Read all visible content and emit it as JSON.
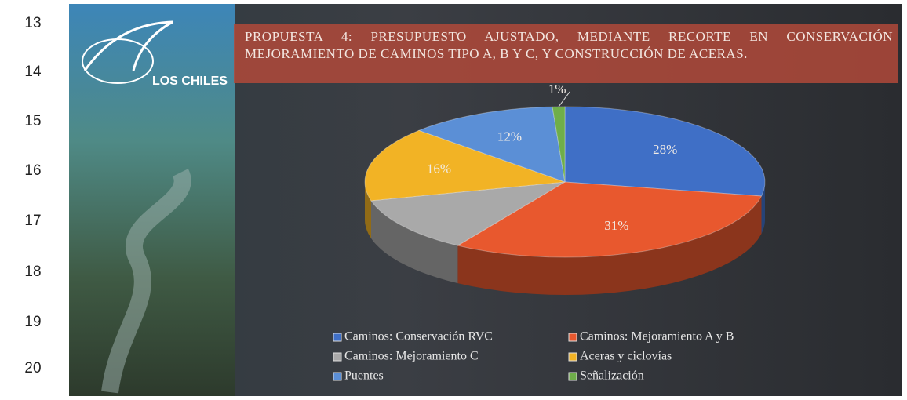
{
  "line_numbers": [
    "13",
    "14",
    "15",
    "16",
    "17",
    "18",
    "19",
    "20"
  ],
  "logo": "LOS CHILES",
  "chart_data": {
    "type": "pie",
    "title": "PROPUESTA 4: PRESUPUESTO AJUSTADO, MEDIANTE RECORTE EN CONSERVACIÓN MEJORAMIENTO DE CAMINOS TIPO A, B Y C, Y CONSTRUCCIÓN DE ACERAS.",
    "categories": [
      "Caminos: Conservación RVC",
      "Caminos: Mejoramiento A y B",
      "Caminos: Mejoramiento C",
      "Aceras y ciclovías",
      "Puentes",
      "Señalización"
    ],
    "values": [
      28,
      31,
      12,
      16,
      12,
      1
    ],
    "value_labels": [
      "28%",
      "31%",
      null,
      "16%",
      "12%",
      "1%"
    ],
    "colors": [
      "#3f6fc6",
      "#e8582e",
      "#a9a9a9",
      "#f2b325",
      "#5b8fd6",
      "#6fae4a"
    ],
    "legend": "bottom"
  }
}
